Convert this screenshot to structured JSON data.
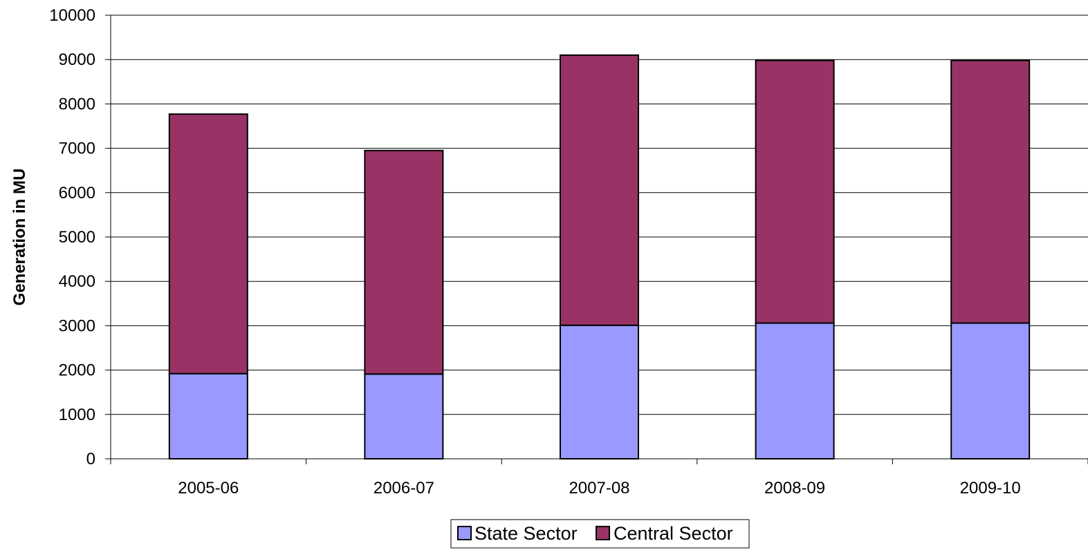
{
  "chart_data": {
    "type": "bar",
    "stacked": true,
    "title": "",
    "xlabel": "",
    "ylabel": "Generation in MU",
    "ylim": [
      0,
      10000
    ],
    "yticks": [
      0,
      1000,
      2000,
      3000,
      4000,
      5000,
      6000,
      7000,
      8000,
      9000,
      10000
    ],
    "grid": true,
    "legend_position": "bottom",
    "categories": [
      "2005-06",
      "2006-07",
      "2007-08",
      "2008-09",
      "2009-10"
    ],
    "series": [
      {
        "name": "State Sector",
        "color": "#9999FF",
        "values": [
          1920,
          1910,
          3010,
          3060,
          3060
        ]
      },
      {
        "name": "Central Sector",
        "color": "#993366",
        "values": [
          5850,
          5040,
          6090,
          5920,
          5920
        ]
      }
    ]
  }
}
